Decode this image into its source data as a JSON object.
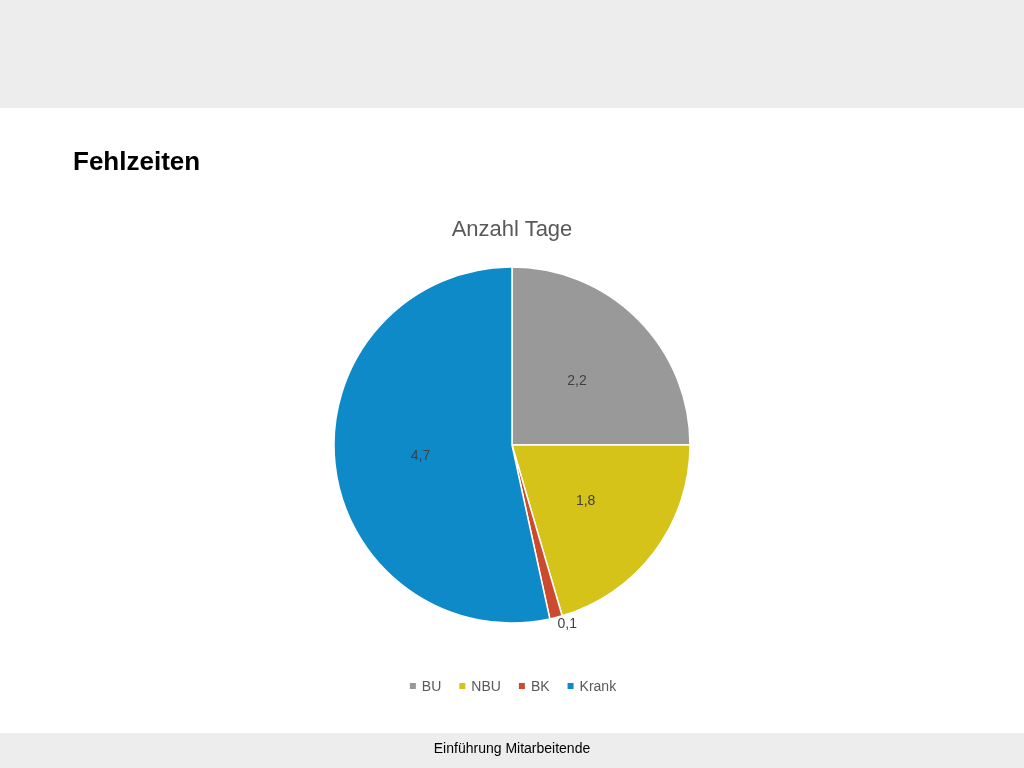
{
  "chart_data": {
    "type": "pie",
    "title": "Fehlzeiten",
    "subtitle": "Anzahl Tage",
    "categories": [
      "BU",
      "NBU",
      "BK",
      "Krank"
    ],
    "values": [
      2.2,
      1.8,
      0.1,
      4.7
    ],
    "colors": [
      "#999999",
      "#d5c319",
      "#cc4b2f",
      "#0d8ac7"
    ],
    "value_labels": [
      "2,2",
      "1,8",
      "0,1",
      "4,7"
    ],
    "legend": "bottom",
    "annotations": [
      "Einführung Mitarbeitende"
    ]
  }
}
